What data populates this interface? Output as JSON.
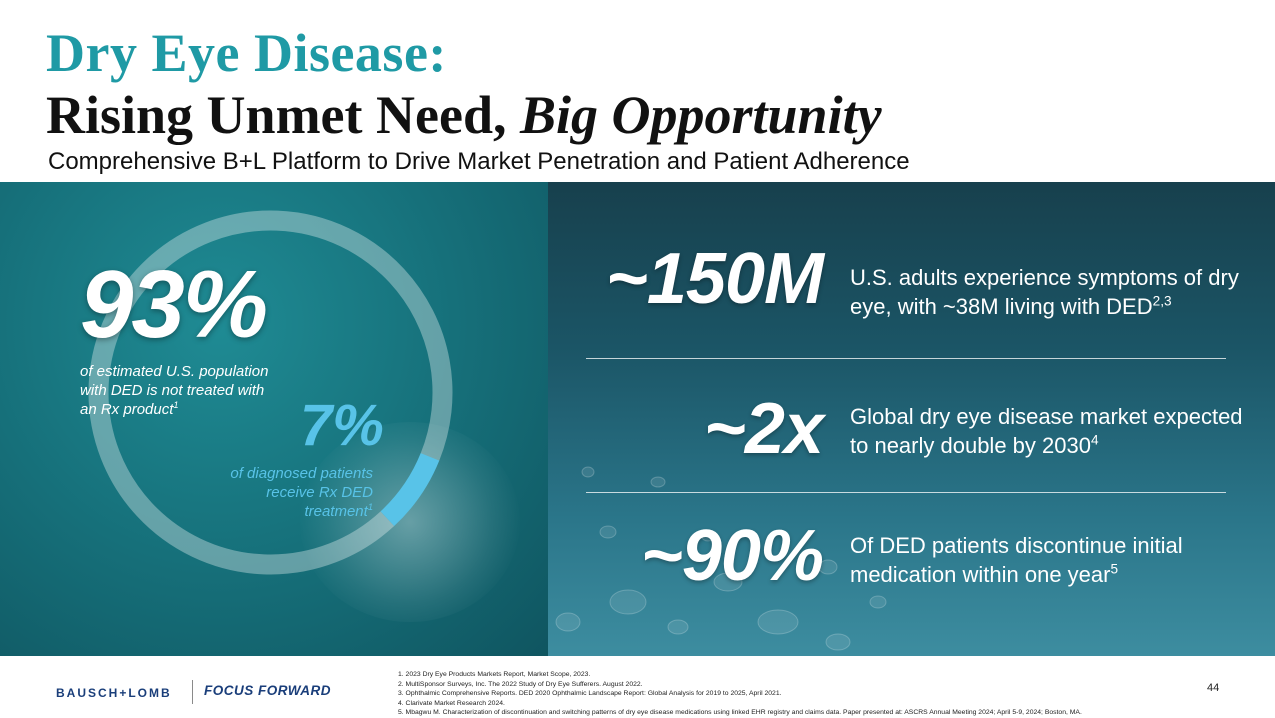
{
  "header": {
    "title_line1": "Dry Eye Disease:",
    "title_line2_plain": "Rising Unmet Need, ",
    "title_line2_italic": "Big Opportunity",
    "subtitle": "Comprehensive B+L Platform to Drive Market Penetration and Patient Adherence"
  },
  "left": {
    "big_stat": "93%",
    "big_caption": "of estimated U.S. population with DED is not treated with an Rx product",
    "big_caption_ref": "1",
    "small_stat": "7%",
    "small_caption": "of diagnosed patients receive Rx DED treatment",
    "small_caption_ref": "1",
    "donut": {
      "untreated_pct": 93,
      "treated_pct": 7,
      "untreated_color": "#e4eef0",
      "treated_color": "#58c3e8"
    }
  },
  "stats": [
    {
      "value": "~150M",
      "text": "U.S. adults experience symptoms of dry eye, with ~38M living with DED",
      "ref": "2,3"
    },
    {
      "value": "~2x",
      "text": "Global dry eye disease market expected to nearly double by 2030",
      "ref": "4"
    },
    {
      "value": "~90%",
      "text": "Of DED patients discontinue initial medication within one year",
      "ref": "5"
    }
  ],
  "footer": {
    "logo_bausch": "BAUSCH+LOMB",
    "logo_tagline": "FOCUS FORWARD",
    "references": [
      "1. 2023 Dry Eye Products Markets Report, Market Scope, 2023.",
      "2. MultiSponsor Surveys, Inc. The 2022 Study of Dry Eye Sufferers. August 2022.",
      "3. Ophthalmic Comprehensive Reports. DED 2020 Ophthalmic Landscape Report: Global Analysis for 2019 to 2025, April 2021.",
      "4. Clarivate Market Research 2024.",
      "5. Mbagwu M. Characterization of discontinuation and switching patterns of dry eye disease medications using linked EHR registry and claims data. Paper presented at: ASCRS Annual Meeting 2024; April 5-9, 2024; Boston, MA."
    ],
    "page_number": "44"
  },
  "colors": {
    "title_teal": "#1f9aa5",
    "accent_blue": "#58c3e8",
    "logo_navy": "#1a3e7a"
  }
}
